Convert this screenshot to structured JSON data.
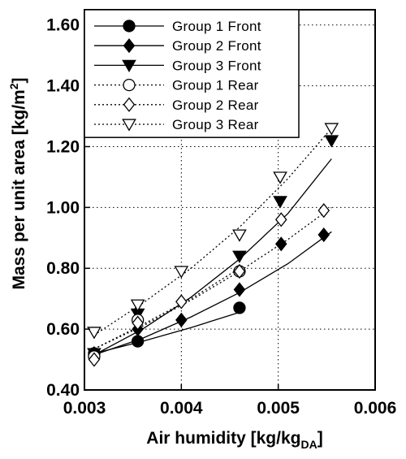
{
  "chart_data": {
    "type": "scatter",
    "xlabel": "Air humidity [kg/kg",
    "xlabel_sub": "DA",
    "xlabel_tail": "]",
    "ylabel": "Mass per unit area [kg/m",
    "ylabel_sup": "2",
    "ylabel_tail": "]",
    "xlim": [
      0.003,
      0.006
    ],
    "ylim": [
      0.4,
      1.65
    ],
    "x_ticks": [
      0.003,
      0.004,
      0.005,
      0.006
    ],
    "x_tick_labels": [
      "0.003",
      "0.004",
      "0.005",
      "0.006"
    ],
    "y_ticks": [
      0.4,
      0.6,
      0.8,
      1.0,
      1.2,
      1.4,
      1.6
    ],
    "y_tick_labels": [
      "0.40",
      "0.60",
      "0.80",
      "1.00",
      "1.20",
      "1.40",
      "1.60"
    ],
    "grid": true,
    "legend_position": "top-left",
    "series": [
      {
        "name": "Group 1 Front",
        "marker": "filled-circle",
        "line": "solid",
        "color": "#000000",
        "x": [
          0.0031,
          0.00355,
          0.0046
        ],
        "y": [
          0.52,
          0.56,
          0.67
        ],
        "fit": [
          [
            0.0031,
            0.52
          ],
          [
            0.0036,
            0.56
          ],
          [
            0.0041,
            0.605
          ],
          [
            0.0046,
            0.655
          ]
        ]
      },
      {
        "name": "Group 2 Front",
        "marker": "filled-diamond",
        "line": "solid",
        "color": "#000000",
        "x": [
          0.0031,
          0.00355,
          0.004,
          0.0046,
          0.00503,
          0.00547
        ],
        "y": [
          0.52,
          0.6,
          0.63,
          0.73,
          0.88,
          0.91
        ],
        "fit": [
          [
            0.0031,
            0.515
          ],
          [
            0.0036,
            0.57
          ],
          [
            0.0041,
            0.64
          ],
          [
            0.0046,
            0.72
          ],
          [
            0.0051,
            0.815
          ],
          [
            0.00555,
            0.92
          ]
        ]
      },
      {
        "name": "Group 3 Front",
        "marker": "filled-triangle-down",
        "line": "solid",
        "color": "#000000",
        "x": [
          0.0031,
          0.00355,
          0.0046,
          0.00502,
          0.00555
        ],
        "y": [
          0.52,
          0.65,
          0.84,
          1.02,
          1.22
        ],
        "fit": [
          [
            0.0031,
            0.515
          ],
          [
            0.0036,
            0.6
          ],
          [
            0.0041,
            0.705
          ],
          [
            0.0046,
            0.83
          ],
          [
            0.0051,
            0.98
          ],
          [
            0.00555,
            1.16
          ]
        ]
      },
      {
        "name": "Group 1 Rear",
        "marker": "open-circle",
        "line": "dotted",
        "color": "#000000",
        "x": [
          0.0031,
          0.00355,
          0.0046
        ],
        "y": [
          0.51,
          0.63,
          0.79
        ],
        "fit": [
          [
            0.0031,
            0.535
          ],
          [
            0.0036,
            0.615
          ],
          [
            0.0041,
            0.7
          ],
          [
            0.0046,
            0.8
          ]
        ]
      },
      {
        "name": "Group 2 Rear",
        "marker": "open-diamond",
        "line": "dotted",
        "color": "#000000",
        "x": [
          0.0031,
          0.00355,
          0.004,
          0.0046,
          0.00503,
          0.00547
        ],
        "y": [
          0.5,
          0.62,
          0.69,
          0.79,
          0.96,
          0.99
        ],
        "fit": [
          [
            0.0031,
            0.535
          ],
          [
            0.0036,
            0.61
          ],
          [
            0.0041,
            0.695
          ],
          [
            0.0046,
            0.79
          ],
          [
            0.0051,
            0.895
          ],
          [
            0.00555,
            1.0
          ]
        ]
      },
      {
        "name": "Group 3 Rear",
        "marker": "open-triangle-down",
        "line": "dotted",
        "color": "#000000",
        "x": [
          0.0031,
          0.00355,
          0.004,
          0.0046,
          0.00502,
          0.00555
        ],
        "y": [
          0.59,
          0.68,
          0.79,
          0.91,
          1.1,
          1.26
        ],
        "fit": [
          [
            0.0031,
            0.58
          ],
          [
            0.0036,
            0.685
          ],
          [
            0.0041,
            0.8
          ],
          [
            0.0046,
            0.935
          ],
          [
            0.0051,
            1.095
          ],
          [
            0.00555,
            1.26
          ]
        ]
      }
    ]
  }
}
